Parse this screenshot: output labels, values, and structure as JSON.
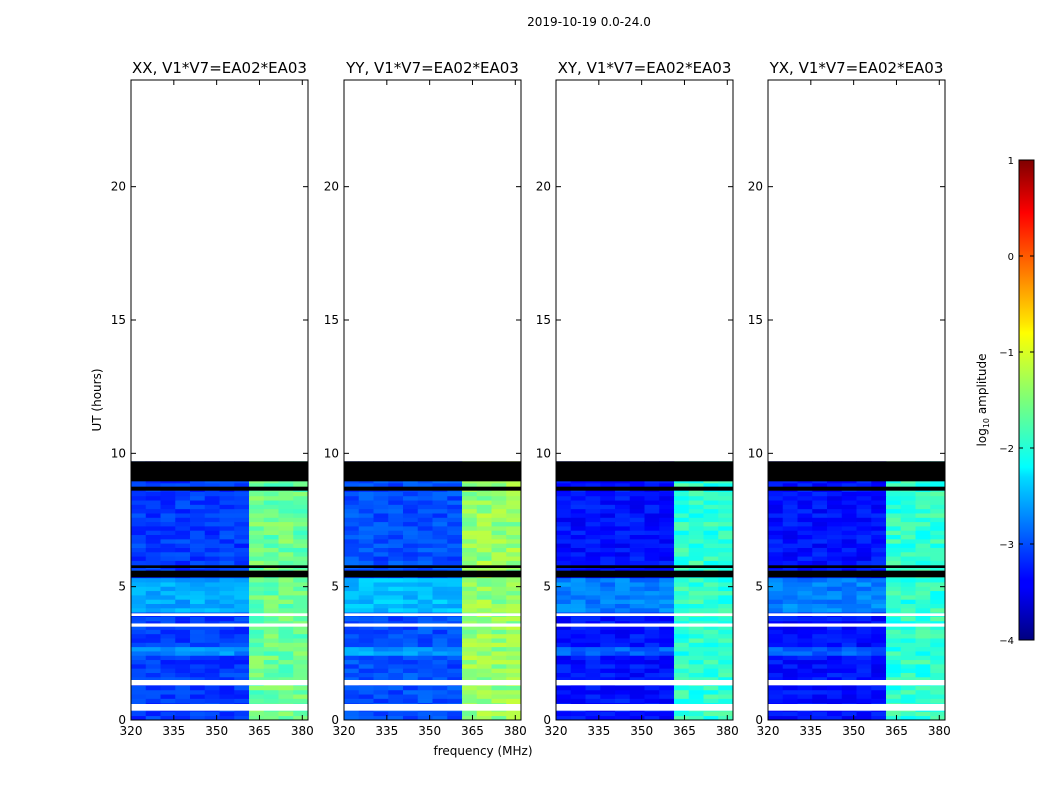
{
  "suptitle": "2019-10-19 0.0-24.0",
  "ylabel": "UT (hours)",
  "xlabel": "frequency (MHz)",
  "colorbar": {
    "label_prefix": "log",
    "label_sub": "10",
    "label_suffix": " amplitude",
    "vmin": -4,
    "vmax": 1,
    "ticks": [
      -4,
      -3,
      -2,
      -1,
      0,
      1
    ],
    "tick_labels": [
      "−4",
      "−3",
      "−2",
      "−1",
      "0",
      "1"
    ],
    "colormap": "jet"
  },
  "chart_data": [
    {
      "type": "heatmap",
      "title": "XX, V1*V7=EA02*EA03",
      "xlim": [
        320,
        382
      ],
      "ylim": [
        0,
        24
      ],
      "x_ticks": [
        320,
        335,
        350,
        365,
        380
      ],
      "y_ticks": [
        0,
        5,
        10,
        15,
        20
      ],
      "data_range_hours": [
        0,
        9.7
      ],
      "base_level": -3.1,
      "rfi_band_mhz": [
        363,
        380
      ],
      "rfi_level": -1.6,
      "flagged_white_hours": [
        [
          0.35,
          0.6
        ],
        [
          1.3,
          1.5
        ],
        [
          3.5,
          3.62
        ],
        [
          3.9,
          4.0
        ]
      ],
      "flagged_black_hours": [
        [
          5.35,
          5.6
        ],
        [
          5.7,
          5.8
        ],
        [
          8.6,
          8.75
        ],
        [
          8.95,
          9.7
        ]
      ]
    },
    {
      "type": "heatmap",
      "title": "YY, V1*V7=EA02*EA03",
      "xlim": [
        320,
        382
      ],
      "ylim": [
        0,
        24
      ],
      "x_ticks": [
        320,
        335,
        350,
        365,
        380
      ],
      "y_ticks": [
        0,
        5,
        10,
        15,
        20
      ],
      "data_range_hours": [
        0,
        9.7
      ],
      "base_level": -3.0,
      "rfi_band_mhz": [
        363,
        380
      ],
      "rfi_level": -1.4,
      "flagged_white_hours": [
        [
          0.35,
          0.6
        ],
        [
          1.3,
          1.5
        ],
        [
          3.5,
          3.62
        ],
        [
          3.9,
          4.0
        ]
      ],
      "flagged_black_hours": [
        [
          5.35,
          5.6
        ],
        [
          5.7,
          5.8
        ],
        [
          8.6,
          8.75
        ],
        [
          8.95,
          9.7
        ]
      ]
    },
    {
      "type": "heatmap",
      "title": "XY, V1*V7=EA02*EA03",
      "xlim": [
        320,
        382
      ],
      "ylim": [
        0,
        24
      ],
      "x_ticks": [
        320,
        335,
        350,
        365,
        380
      ],
      "y_ticks": [
        0,
        5,
        10,
        15,
        20
      ],
      "data_range_hours": [
        0,
        9.7
      ],
      "base_level": -3.3,
      "rfi_band_mhz": [
        363,
        380
      ],
      "rfi_level": -1.9,
      "flagged_white_hours": [
        [
          0.35,
          0.6
        ],
        [
          1.3,
          1.5
        ],
        [
          3.5,
          3.62
        ],
        [
          3.9,
          4.0
        ]
      ],
      "flagged_black_hours": [
        [
          5.35,
          5.6
        ],
        [
          5.7,
          5.8
        ],
        [
          8.6,
          8.75
        ],
        [
          8.95,
          9.7
        ]
      ]
    },
    {
      "type": "heatmap",
      "title": "YX, V1*V7=EA02*EA03",
      "xlim": [
        320,
        382
      ],
      "ylim": [
        0,
        24
      ],
      "x_ticks": [
        320,
        335,
        350,
        365,
        380
      ],
      "y_ticks": [
        0,
        5,
        10,
        15,
        20
      ],
      "data_range_hours": [
        0,
        9.7
      ],
      "base_level": -3.3,
      "rfi_band_mhz": [
        363,
        380
      ],
      "rfi_level": -1.9,
      "flagged_white_hours": [
        [
          0.35,
          0.6
        ],
        [
          1.3,
          1.5
        ],
        [
          3.5,
          3.62
        ],
        [
          3.9,
          4.0
        ]
      ],
      "flagged_black_hours": [
        [
          5.35,
          5.6
        ],
        [
          5.7,
          5.8
        ],
        [
          8.6,
          8.75
        ],
        [
          8.95,
          9.7
        ]
      ]
    }
  ]
}
